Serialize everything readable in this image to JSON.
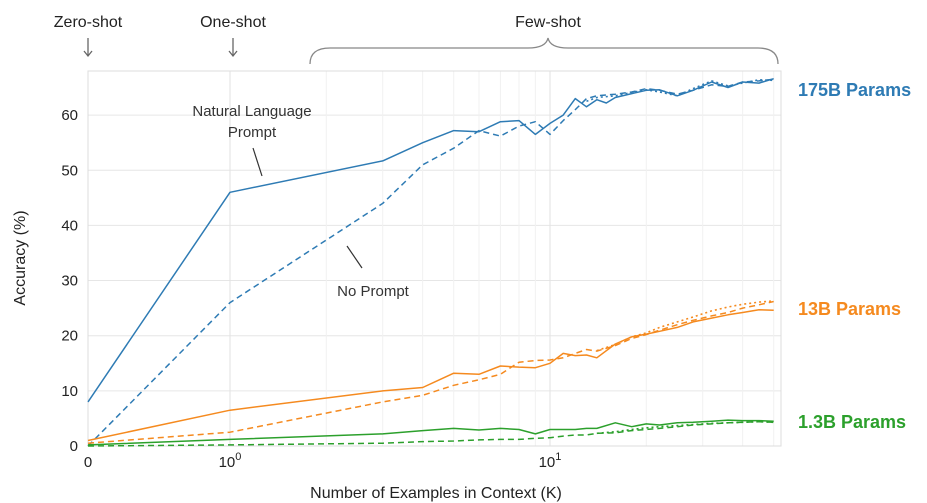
{
  "chart_data": {
    "type": "line",
    "xlabel": "Number of Examples in Context  (K)",
    "ylabel": "Accuracy (%)",
    "x_scale": "symlog",
    "xlim": [
      0,
      100
    ],
    "ylim": [
      0,
      68
    ],
    "x_ticks": [
      {
        "value": 0,
        "label": "0"
      },
      {
        "value": 1,
        "label": "10",
        "sup": "0"
      },
      {
        "value": 10,
        "label": "10",
        "sup": "1"
      }
    ],
    "y_ticks": [
      0,
      10,
      20,
      30,
      40,
      50,
      60
    ],
    "grid": true,
    "top_labels": {
      "zero_shot": "Zero-shot",
      "one_shot": "One-shot",
      "few_shot": "Few-shot"
    },
    "annotations": {
      "natural_line1": "Natural Language",
      "natural_line2": "Prompt",
      "no_prompt": "No Prompt"
    },
    "groups": [
      {
        "name": "175B Params",
        "color": "#2e7bb4",
        "series": [
          {
            "style": "solid",
            "points": [
              [
                0,
                8
              ],
              [
                1,
                46
              ],
              [
                3,
                51.7
              ],
              [
                4,
                55
              ],
              [
                5,
                57.2
              ],
              [
                6,
                57
              ],
              [
                7,
                58.8
              ],
              [
                8,
                59
              ],
              [
                9,
                56.5
              ],
              [
                10,
                58.5
              ],
              [
                11,
                60
              ],
              [
                12,
                63
              ],
              [
                13,
                61.5
              ],
              [
                14,
                62.8
              ],
              [
                15,
                62.2
              ],
              [
                16,
                63.2
              ],
              [
                18,
                63.9
              ],
              [
                20,
                64.5
              ],
              [
                22,
                64.6
              ],
              [
                25,
                63.5
              ],
              [
                28,
                64.5
              ],
              [
                32,
                66
              ],
              [
                36,
                65
              ],
              [
                40,
                66
              ],
              [
                45,
                65.8
              ],
              [
                50,
                66.6
              ]
            ]
          },
          {
            "style": "dashed",
            "points": [
              [
                0,
                0
              ],
              [
                1,
                26
              ],
              [
                3,
                44
              ],
              [
                4,
                51
              ],
              [
                5,
                54
              ],
              [
                6,
                57.2
              ],
              [
                7,
                56.2
              ],
              [
                8,
                58
              ],
              [
                9,
                58.8
              ],
              [
                10,
                56.5
              ],
              [
                11,
                59
              ],
              [
                12,
                61
              ],
              [
                13,
                63
              ],
              [
                14,
                63.5
              ],
              [
                16,
                63.8
              ],
              [
                18,
                64.2
              ],
              [
                20,
                64.8
              ],
              [
                22,
                64.5
              ],
              [
                25,
                63.8
              ],
              [
                28,
                64.5
              ],
              [
                32,
                65.5
              ],
              [
                36,
                65.2
              ],
              [
                40,
                66
              ],
              [
                45,
                66.2
              ],
              [
                50,
                66.5
              ]
            ]
          },
          {
            "style": "dotted",
            "points": [
              [
                13,
                62.5
              ],
              [
                14,
                63.2
              ],
              [
                16,
                63.5
              ],
              [
                18,
                64.1
              ],
              [
                20,
                64.6
              ],
              [
                22,
                64.2
              ],
              [
                25,
                63.5
              ],
              [
                28,
                64.8
              ],
              [
                32,
                66.2
              ],
              [
                36,
                65.3
              ],
              [
                40,
                65.8
              ],
              [
                45,
                66.4
              ],
              [
                50,
                66.3
              ]
            ]
          }
        ]
      },
      {
        "name": "13B Params",
        "color": "#f58a1f",
        "series": [
          {
            "style": "solid",
            "points": [
              [
                0,
                1
              ],
              [
                1,
                6.5
              ],
              [
                3,
                10
              ],
              [
                4,
                10.6
              ],
              [
                5,
                13.2
              ],
              [
                6,
                13
              ],
              [
                7,
                14.5
              ],
              [
                8,
                14.3
              ],
              [
                9,
                14.2
              ],
              [
                10,
                15
              ],
              [
                11,
                16.8
              ],
              [
                12,
                16.4
              ],
              [
                13,
                16.5
              ],
              [
                14,
                16
              ],
              [
                16,
                18.5
              ],
              [
                18,
                19.8
              ],
              [
                20,
                20.3
              ],
              [
                22,
                20.8
              ],
              [
                25,
                21.5
              ],
              [
                28,
                22.5
              ],
              [
                32,
                23.2
              ],
              [
                36,
                23.8
              ],
              [
                40,
                24.2
              ],
              [
                45,
                24.7
              ],
              [
                50,
                24.6
              ]
            ]
          },
          {
            "style": "dashed",
            "points": [
              [
                0,
                0.5
              ],
              [
                1,
                2.5
              ],
              [
                3,
                8
              ],
              [
                4,
                9.2
              ],
              [
                5,
                11
              ],
              [
                6,
                12
              ],
              [
                7,
                13
              ],
              [
                8,
                15.2
              ],
              [
                9,
                15.5
              ],
              [
                10,
                15.6
              ],
              [
                11,
                16
              ],
              [
                12,
                16.8
              ],
              [
                13,
                17.5
              ],
              [
                14,
                17.2
              ],
              [
                16,
                18.2
              ],
              [
                18,
                19.5
              ],
              [
                20,
                20.2
              ],
              [
                22,
                21
              ],
              [
                25,
                22
              ],
              [
                28,
                22.8
              ],
              [
                32,
                23.6
              ],
              [
                36,
                24.2
              ],
              [
                40,
                25
              ],
              [
                45,
                25.6
              ],
              [
                50,
                26.2
              ]
            ]
          },
          {
            "style": "dotted",
            "points": [
              [
                14,
                17.3
              ],
              [
                16,
                18.4
              ],
              [
                18,
                19.8
              ],
              [
                20,
                20.5
              ],
              [
                22,
                21.5
              ],
              [
                25,
                22.5
              ],
              [
                28,
                23.4
              ],
              [
                32,
                24.5
              ],
              [
                36,
                25.2
              ],
              [
                40,
                25.7
              ],
              [
                45,
                26.1
              ],
              [
                50,
                26.3
              ]
            ]
          }
        ]
      },
      {
        "name": "1.3B Params",
        "color": "#2ca02c",
        "series": [
          {
            "style": "solid",
            "points": [
              [
                0,
                0.2
              ],
              [
                1,
                1.2
              ],
              [
                3,
                2.2
              ],
              [
                4,
                2.8
              ],
              [
                5,
                3.2
              ],
              [
                6,
                2.9
              ],
              [
                7,
                3.2
              ],
              [
                8,
                3
              ],
              [
                9,
                2.2
              ],
              [
                10,
                3
              ],
              [
                11,
                3
              ],
              [
                12,
                3
              ],
              [
                13,
                3.2
              ],
              [
                14,
                3.2
              ],
              [
                16,
                4.2
              ],
              [
                18,
                3.5
              ],
              [
                20,
                4
              ],
              [
                22,
                3.8
              ],
              [
                25,
                4.2
              ],
              [
                28,
                4.3
              ],
              [
                32,
                4.5
              ],
              [
                36,
                4.7
              ],
              [
                40,
                4.6
              ],
              [
                45,
                4.6
              ],
              [
                50,
                4.5
              ]
            ]
          },
          {
            "style": "dashed",
            "points": [
              [
                0,
                0
              ],
              [
                1,
                0.2
              ],
              [
                3,
                0.5
              ],
              [
                4,
                0.8
              ],
              [
                5,
                0.9
              ],
              [
                6,
                1.1
              ],
              [
                7,
                1.2
              ],
              [
                8,
                1.2
              ],
              [
                9,
                1.4
              ],
              [
                10,
                1.5
              ],
              [
                11,
                1.8
              ],
              [
                12,
                2
              ],
              [
                13,
                2
              ],
              [
                14,
                2.3
              ],
              [
                16,
                2.4
              ],
              [
                18,
                2.8
              ],
              [
                20,
                3
              ],
              [
                22,
                3.2
              ],
              [
                25,
                3.5
              ],
              [
                28,
                3.8
              ],
              [
                32,
                4
              ],
              [
                36,
                4.2
              ],
              [
                40,
                4.3
              ],
              [
                45,
                4.4
              ],
              [
                50,
                4.3
              ]
            ]
          },
          {
            "style": "dotted",
            "points": [
              [
                14,
                2.3
              ],
              [
                16,
                2.6
              ],
              [
                18,
                3
              ],
              [
                20,
                3.3
              ],
              [
                22,
                3.5
              ],
              [
                25,
                3.7
              ],
              [
                28,
                3.9
              ],
              [
                32,
                4.1
              ],
              [
                36,
                4.2
              ],
              [
                40,
                4.3
              ],
              [
                45,
                4.4
              ],
              [
                50,
                4.3
              ]
            ]
          }
        ]
      }
    ]
  }
}
